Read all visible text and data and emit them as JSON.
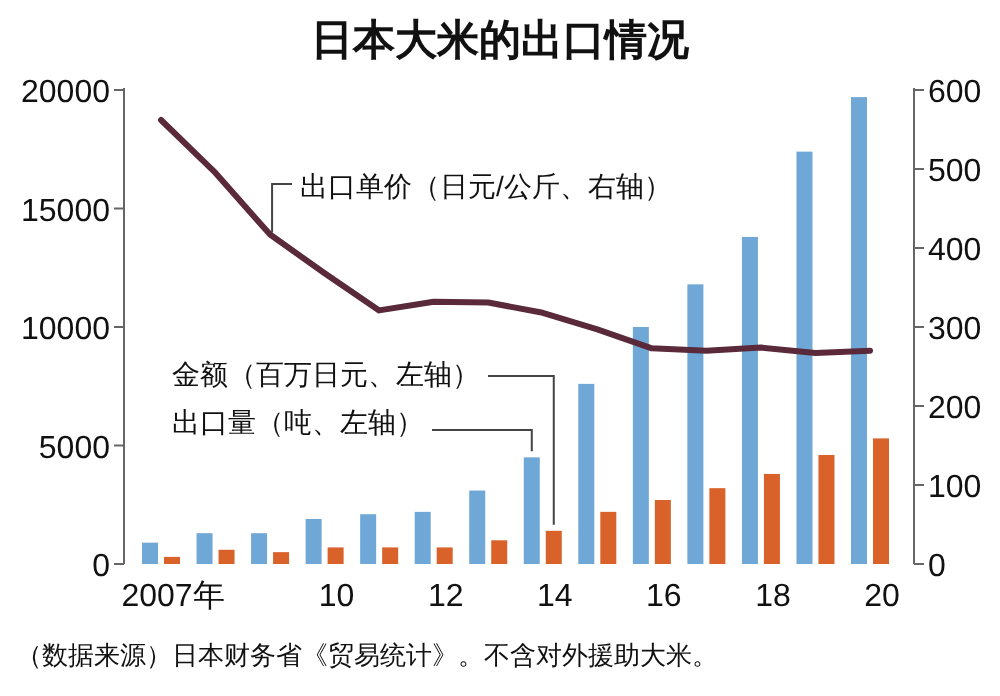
{
  "chart_data": {
    "type": "bar",
    "title": "日本大米的出口情况",
    "categories": [
      "2007年",
      null,
      null,
      "10",
      null,
      "12",
      null,
      "14",
      null,
      "16",
      null,
      "18",
      null,
      "20"
    ],
    "series": [
      {
        "name": "出口量（吨、左轴）",
        "color": "#6fa8d6",
        "values": [
          900,
          1300,
          1300,
          1900,
          2100,
          2200,
          3100,
          4500,
          7600,
          10000,
          11800,
          13800,
          17400,
          19700
        ]
      },
      {
        "name": "金额（百万日元、左轴）",
        "color": "#d9622b",
        "values": [
          300,
          600,
          500,
          700,
          700,
          700,
          1000,
          1400,
          2200,
          2700,
          3200,
          3800,
          4600,
          5300
        ]
      },
      {
        "type": "line",
        "axis": "y2",
        "name": "出口单价（日元/公斤、右轴）",
        "color": "#5a2a3a",
        "values": [
          562,
          495,
          417,
          368,
          321,
          332,
          331,
          318,
          297,
          273,
          270,
          274,
          267,
          270
        ]
      }
    ],
    "ylim": [
      0,
      20000
    ],
    "yticks": [
      0,
      5000,
      10000,
      15000,
      20000
    ],
    "y2lim": [
      0,
      600
    ],
    "y2ticks": [
      0,
      100,
      200,
      300,
      400,
      500,
      600
    ],
    "grid": false,
    "legend": false,
    "annotations": [
      "（数据来源）日本财务省《贸易统计》。不含对外援助大米。"
    ]
  }
}
